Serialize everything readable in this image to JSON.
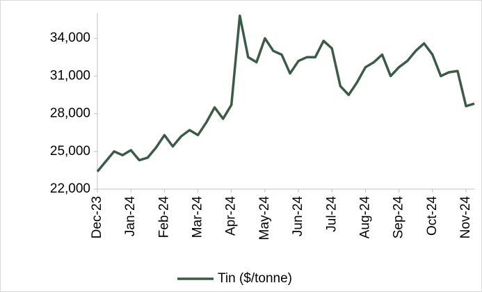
{
  "chart_data": {
    "type": "line",
    "categories": [
      "Dec-23",
      null,
      null,
      null,
      "Jan-24",
      null,
      null,
      null,
      "Feb-24",
      null,
      null,
      null,
      "Mar-24",
      null,
      null,
      null,
      "Apr-24",
      null,
      null,
      null,
      "May-24",
      null,
      null,
      null,
      "Jun-24",
      null,
      null,
      null,
      "Jul-24",
      null,
      null,
      null,
      "Aug-24",
      null,
      null,
      null,
      "Sep-24",
      null,
      null,
      null,
      "Oct-24",
      null,
      null,
      null,
      "Nov-24",
      null
    ],
    "series": [
      {
        "name": "Tin ($/tonne)",
        "color": "#3b5a48",
        "values": [
          23400,
          24200,
          25000,
          24700,
          25100,
          24300,
          24500,
          25300,
          26300,
          25400,
          26200,
          26700,
          26300,
          27300,
          28500,
          27600,
          28700,
          35800,
          32500,
          32100,
          34000,
          33000,
          32700,
          31200,
          32200,
          32500,
          32500,
          33800,
          33200,
          30200,
          29500,
          30500,
          31700,
          32100,
          32700,
          31000,
          31700,
          32200,
          33000,
          33600,
          32700,
          31000,
          31300,
          31400,
          28600,
          28800
        ]
      }
    ],
    "ylim": [
      22000,
      36000
    ],
    "yticks": [
      {
        "value": 22000,
        "label": "22,000"
      },
      {
        "value": 25000,
        "label": "25,000"
      },
      {
        "value": 28000,
        "label": "28,000"
      },
      {
        "value": 31000,
        "label": "31,000"
      },
      {
        "value": 34000,
        "label": "34,000"
      }
    ],
    "legend": "bottom",
    "grid": false
  }
}
